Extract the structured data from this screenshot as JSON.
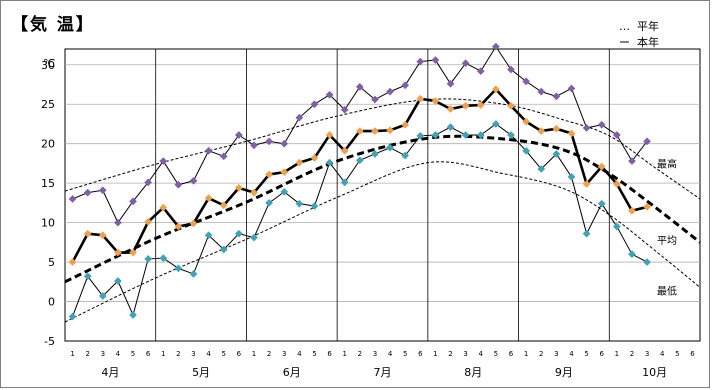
{
  "title": "【気 温】",
  "legend": [
    {
      "symbol": "…",
      "label": "平年"
    },
    {
      "symbol": "ー",
      "label": "本年"
    }
  ],
  "colors": {
    "max": "#7f5fa8",
    "avg": "#f0a048",
    "min": "#3fa3b8",
    "line": "#000000",
    "grid": "#b0b0b0"
  },
  "chart_data": {
    "type": "line",
    "ylabel": "℃",
    "ylim": [
      -5,
      32
    ],
    "yticks": [
      -5,
      0,
      5,
      10,
      15,
      20,
      25,
      30
    ],
    "grid": true,
    "x_unit": "半旬 (5-day period)",
    "months": [
      "4月",
      "5月",
      "6月",
      "7月",
      "8月",
      "9月",
      "10月"
    ],
    "period_ticks": [
      "1",
      "2",
      "3",
      "4",
      "5",
      "6"
    ],
    "series_labels": {
      "max": "最高",
      "avg": "平均",
      "min": "最低"
    },
    "this_year": {
      "max": [
        13.0,
        13.8,
        14.1,
        10.0,
        12.7,
        15.1,
        17.8,
        14.8,
        15.3,
        19.1,
        18.4,
        21.1,
        19.8,
        20.3,
        20.0,
        23.3,
        25.0,
        26.2,
        24.3,
        27.2,
        25.6,
        26.6,
        27.4,
        30.4,
        30.6,
        27.6,
        30.2,
        29.2,
        32.3,
        29.4,
        27.9,
        26.6,
        26.0,
        27.0,
        22.0,
        22.4,
        21.1,
        17.8,
        20.3
      ],
      "avg": [
        5.0,
        8.6,
        8.4,
        6.2,
        6.2,
        10.1,
        11.9,
        9.5,
        9.9,
        13.1,
        12.2,
        14.4,
        13.8,
        16.1,
        16.4,
        17.6,
        18.2,
        21.1,
        19.1,
        21.6,
        21.6,
        21.7,
        22.4,
        25.7,
        25.4,
        24.4,
        24.8,
        24.9,
        26.9,
        24.8,
        22.8,
        21.6,
        21.9,
        21.3,
        14.9,
        17.1,
        14.9,
        11.5,
        12.0
      ],
      "min": [
        -1.9,
        3.2,
        0.7,
        2.6,
        -1.7,
        5.4,
        5.5,
        4.2,
        3.5,
        8.4,
        6.6,
        8.6,
        8.1,
        12.5,
        13.9,
        12.4,
        12.1,
        17.6,
        15.1,
        17.9,
        18.7,
        19.5,
        18.5,
        21.0,
        21.1,
        22.1,
        21.1,
        21.1,
        22.5,
        21.1,
        19.1,
        16.8,
        18.7,
        15.8,
        8.6,
        12.4,
        9.5,
        6.0,
        5.0
      ]
    },
    "normal": {
      "max_x": [
        0,
        6,
        12,
        18,
        24,
        29,
        33,
        36,
        39,
        42
      ],
      "max": [
        14.0,
        17.4,
        20.3,
        23.5,
        25.6,
        25.0,
        23.0,
        21.0,
        17.0,
        13.0
      ],
      "avg_x": [
        0,
        6,
        12,
        18,
        24,
        29,
        33,
        36,
        39,
        42
      ],
      "avg": [
        2.5,
        8.0,
        12.6,
        17.8,
        20.7,
        20.6,
        19.2,
        16.2,
        12.0,
        7.5
      ],
      "min_x": [
        0,
        6,
        12,
        18,
        24,
        29,
        33,
        36,
        39,
        42
      ],
      "min": [
        -2.6,
        3.0,
        7.9,
        13.2,
        17.6,
        16.2,
        14.3,
        11.0,
        6.5,
        1.8
      ]
    }
  }
}
